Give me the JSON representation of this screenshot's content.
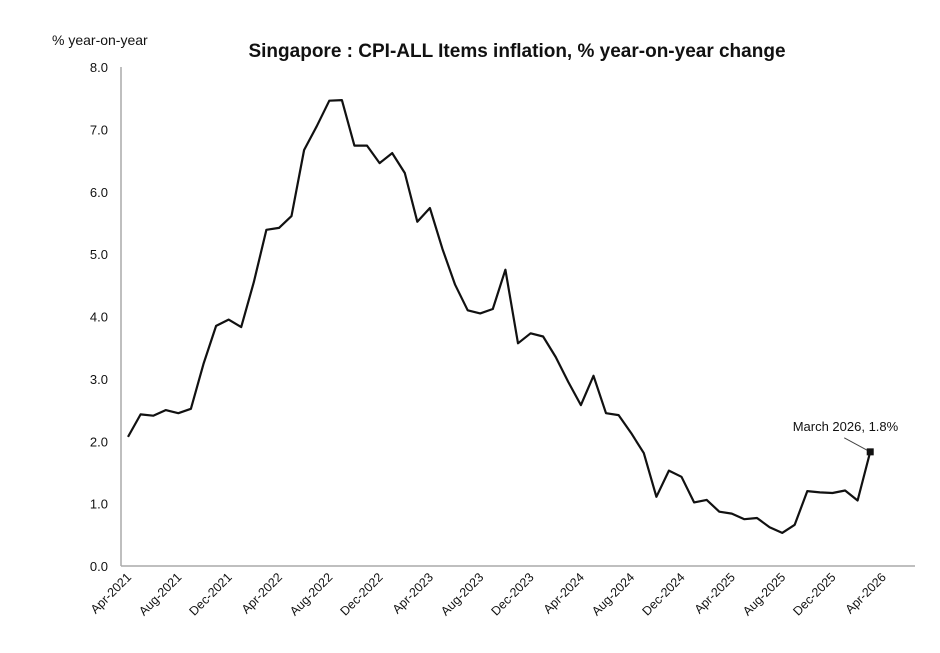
{
  "chart_data": {
    "type": "line",
    "title": "Singapore : CPI-ALL Items inflation, % year-on-year change",
    "ylabel": "% year-on-year",
    "xlabel": "",
    "ylim": [
      0,
      8
    ],
    "yticks": [
      "0.0",
      "1.0",
      "2.0",
      "3.0",
      "4.0",
      "5.0",
      "6.0",
      "7.0",
      "8.0"
    ],
    "xticks": [
      "Apr-2021",
      "Aug-2021",
      "Dec-2021",
      "Apr-2022",
      "Aug-2022",
      "Dec-2022",
      "Apr-2023",
      "Aug-2023",
      "Dec-2023",
      "Apr-2024",
      "Aug-2024",
      "Dec-2024",
      "Apr-2025",
      "Aug-2025",
      "Dec-2025",
      "Apr-2026"
    ],
    "x_start": "Apr-2021",
    "x_end": "Mar-2026",
    "grid": false,
    "line_color": "#111111",
    "series": [
      {
        "values": [
          2.07,
          2.43,
          2.41,
          2.5,
          2.45,
          2.52,
          3.24,
          3.85,
          3.95,
          3.83,
          4.55,
          5.39,
          5.42,
          5.61,
          6.67,
          7.05,
          7.46,
          7.47,
          6.74,
          6.74,
          6.46,
          6.62,
          6.3,
          5.52,
          5.74,
          5.08,
          4.51,
          4.1,
          4.05,
          4.12,
          4.75,
          3.57,
          3.73,
          3.68,
          3.35,
          2.95,
          2.58,
          3.05,
          2.45,
          2.42,
          2.13,
          1.81,
          1.11,
          1.53,
          1.43,
          1.02,
          1.06,
          0.87,
          0.84,
          0.75,
          0.77,
          0.62,
          0.53,
          0.66,
          1.2,
          1.18,
          1.17,
          1.21,
          1.05,
          1.83
        ]
      }
    ],
    "annotation": {
      "text": "March 2026, 1.8%",
      "x": "Mar-2026",
      "y": 1.8
    }
  }
}
